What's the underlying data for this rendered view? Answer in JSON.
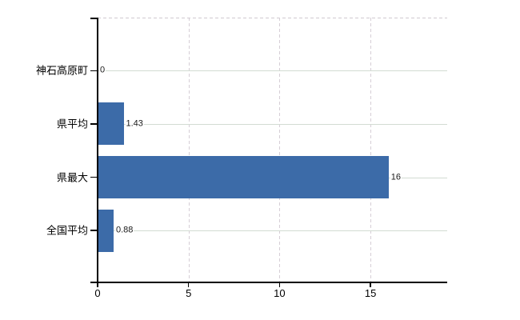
{
  "chart_data": {
    "type": "bar",
    "orientation": "horizontal",
    "title": "",
    "categories": [
      "神石高原町",
      "県平均",
      "県最大",
      "全国平均"
    ],
    "values": [
      0,
      1.43,
      16,
      0.88
    ],
    "value_labels": [
      "0",
      "1.43",
      "16",
      "0.88"
    ],
    "x_tick_labels": [
      "0",
      "5",
      "10",
      "15"
    ],
    "x_tick_values": [
      0,
      5,
      10,
      15
    ],
    "xlim": [
      0,
      19.22
    ],
    "grid": true,
    "legend": false,
    "colors": {
      "bar": "#3c6ba8",
      "axis": "#000000",
      "h_gridline": "#d2dcd2",
      "v_gridline": "#d6ced6",
      "top_border": "#cfc9d0",
      "category_text": "#000000",
      "value_text": "#1a1a1a",
      "tick_text": "#000000",
      "background": "#ffffff"
    }
  }
}
